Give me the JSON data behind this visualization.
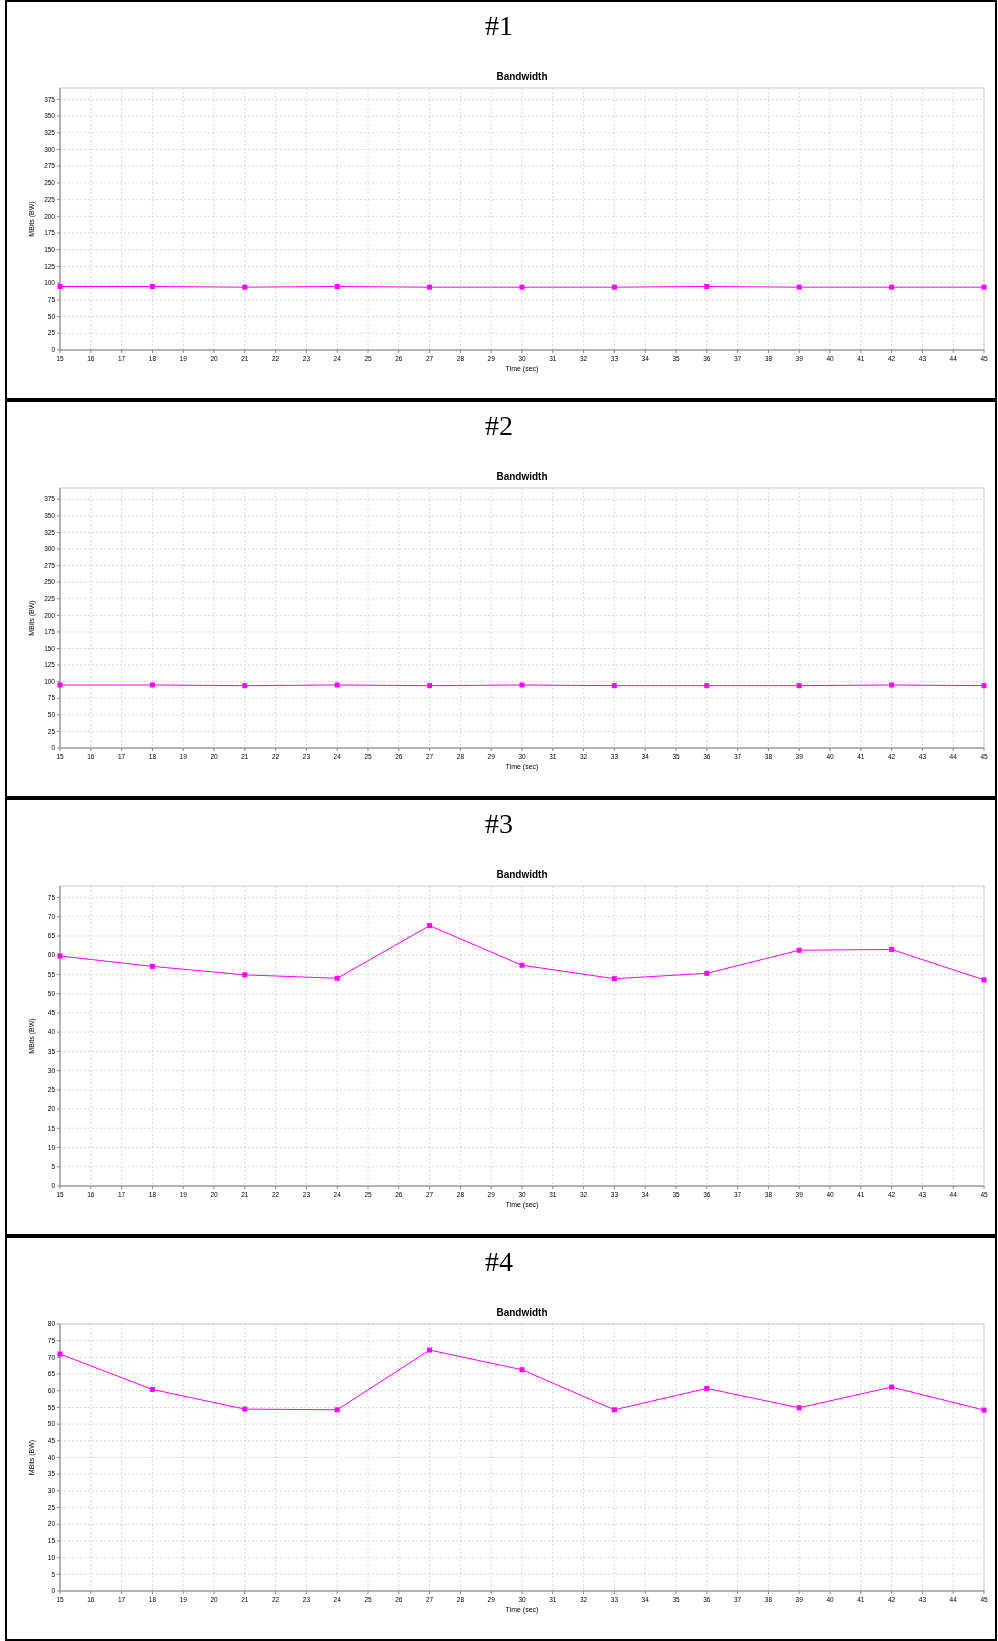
{
  "chart_data": [
    {
      "type": "line",
      "title": "Bandwidth",
      "annotations": [
        "#1"
      ],
      "xlabel": "Time (sec)",
      "ylabel": "MBits (BW)",
      "x": [
        15,
        18,
        21,
        24,
        27,
        30,
        33,
        36,
        39,
        42,
        45
      ],
      "series": [
        {
          "color": "#ff00ff",
          "values": [
            95,
            95,
            94,
            95,
            94,
            94,
            94,
            95,
            94,
            94,
            94
          ]
        }
      ],
      "xlim": [
        15,
        45
      ],
      "xticks": [
        15,
        16,
        17,
        18,
        19,
        20,
        21,
        22,
        23,
        24,
        25,
        26,
        27,
        28,
        29,
        30,
        31,
        32,
        33,
        34,
        35,
        36,
        37,
        38,
        39,
        40,
        41,
        42,
        43,
        44,
        45
      ],
      "ylim": [
        0,
        392
      ],
      "yticks": [
        0,
        25,
        50,
        75,
        100,
        125,
        150,
        175,
        200,
        225,
        250,
        275,
        300,
        325,
        350,
        375
      ],
      "grid": true,
      "marker": "square"
    },
    {
      "type": "line",
      "title": "Bandwidth",
      "annotations": [
        "#2"
      ],
      "xlabel": "Time (sec)",
      "ylabel": "MBits (BW)",
      "x": [
        15,
        18,
        21,
        24,
        27,
        30,
        33,
        36,
        39,
        42,
        45
      ],
      "series": [
        {
          "color": "#ff00ff",
          "values": [
            95,
            95,
            94,
            95,
            94,
            95,
            94,
            94,
            94,
            95,
            94
          ]
        }
      ],
      "xlim": [
        15,
        45
      ],
      "xticks": [
        15,
        16,
        17,
        18,
        19,
        20,
        21,
        22,
        23,
        24,
        25,
        26,
        27,
        28,
        29,
        30,
        31,
        32,
        33,
        34,
        35,
        36,
        37,
        38,
        39,
        40,
        41,
        42,
        43,
        44,
        45
      ],
      "ylim": [
        0,
        392
      ],
      "yticks": [
        0,
        25,
        50,
        75,
        100,
        125,
        150,
        175,
        200,
        225,
        250,
        275,
        300,
        325,
        350,
        375
      ],
      "grid": true,
      "marker": "square"
    },
    {
      "type": "line",
      "title": "Bandwidth",
      "annotations": [
        "#3"
      ],
      "xlabel": "Time (sec)",
      "ylabel": "MBits (BW)",
      "x": [
        15,
        18,
        21,
        24,
        27,
        30,
        33,
        36,
        39,
        42,
        45
      ],
      "series": [
        {
          "color": "#ff00ff",
          "values": [
            59.8,
            57.1,
            54.9,
            54,
            67.7,
            57.4,
            53.9,
            55.3,
            61.3,
            61.5,
            53.6
          ]
        }
      ],
      "xlim": [
        15,
        45
      ],
      "xticks": [
        15,
        16,
        17,
        18,
        19,
        20,
        21,
        22,
        23,
        24,
        25,
        26,
        27,
        28,
        29,
        30,
        31,
        32,
        33,
        34,
        35,
        36,
        37,
        38,
        39,
        40,
        41,
        42,
        43,
        44,
        45
      ],
      "ylim": [
        0,
        78
      ],
      "yticks": [
        0,
        5,
        10,
        15,
        20,
        25,
        30,
        35,
        40,
        45,
        50,
        55,
        60,
        65,
        70,
        75
      ],
      "grid": true,
      "marker": "square"
    },
    {
      "type": "line",
      "title": "Bandwidth",
      "annotations": [
        "#4"
      ],
      "xlabel": "Time (sec)",
      "ylabel": "MBits (BW)",
      "x": [
        15,
        18,
        21,
        24,
        27,
        30,
        33,
        36,
        39,
        42,
        45
      ],
      "series": [
        {
          "color": "#ff00ff",
          "values": [
            71,
            60.4,
            54.5,
            54.3,
            72.2,
            66.3,
            54.3,
            60.7,
            54.9,
            61.1,
            54.2
          ]
        }
      ],
      "xlim": [
        15,
        45
      ],
      "xticks": [
        15,
        16,
        17,
        18,
        19,
        20,
        21,
        22,
        23,
        24,
        25,
        26,
        27,
        28,
        29,
        30,
        31,
        32,
        33,
        34,
        35,
        36,
        37,
        38,
        39,
        40,
        41,
        42,
        43,
        44,
        45
      ],
      "ylim": [
        0,
        80
      ],
      "yticks": [
        0,
        5,
        10,
        15,
        20,
        25,
        30,
        35,
        40,
        45,
        50,
        55,
        60,
        65,
        70,
        75,
        80
      ],
      "grid": true,
      "marker": "square"
    }
  ]
}
